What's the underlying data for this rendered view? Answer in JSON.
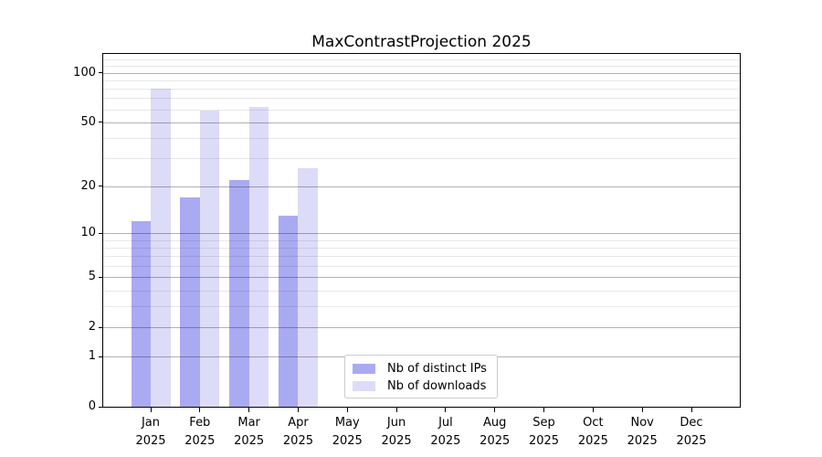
{
  "figure": {
    "title": "MaxContrastProjection 2025"
  },
  "chart_data": {
    "type": "bar",
    "title": "MaxContrastProjection 2025",
    "x_categories": [
      "Jan",
      "Feb",
      "Mar",
      "Apr",
      "May",
      "Jun",
      "Jul",
      "Aug",
      "Sep",
      "Oct",
      "Nov",
      "Dec"
    ],
    "x_year": "2025",
    "series": [
      {
        "name": "Nb of distinct IPs",
        "color": "#aaaaf2",
        "values": [
          12,
          17,
          22,
          13,
          0,
          0,
          0,
          0,
          0,
          0,
          0,
          0
        ]
      },
      {
        "name": "Nb of downloads",
        "color": "#dcdcf8",
        "values": [
          80,
          59,
          62,
          26,
          0,
          0,
          0,
          0,
          0,
          0,
          0,
          0
        ]
      }
    ],
    "yscale": "log1p",
    "ylim": [
      0,
      130
    ],
    "y_major_ticks": [
      0,
      1,
      2,
      5,
      10,
      20,
      50,
      100
    ],
    "y_minor_ticks": [
      3,
      4,
      6,
      7,
      8,
      9,
      30,
      40,
      60,
      70,
      80,
      90,
      110,
      120
    ],
    "grid": true,
    "legend": {
      "position": "lower-center",
      "labels": [
        "Nb of distinct IPs",
        "Nb of downloads"
      ]
    }
  },
  "colors": {
    "background": "#ffffff",
    "spine": "#000000",
    "grid_major": "rgba(0,0,0,0.30)",
    "grid_minor": "rgba(0,0,0,0.09)",
    "text": "#000000",
    "legend_border": "#cccccc"
  }
}
